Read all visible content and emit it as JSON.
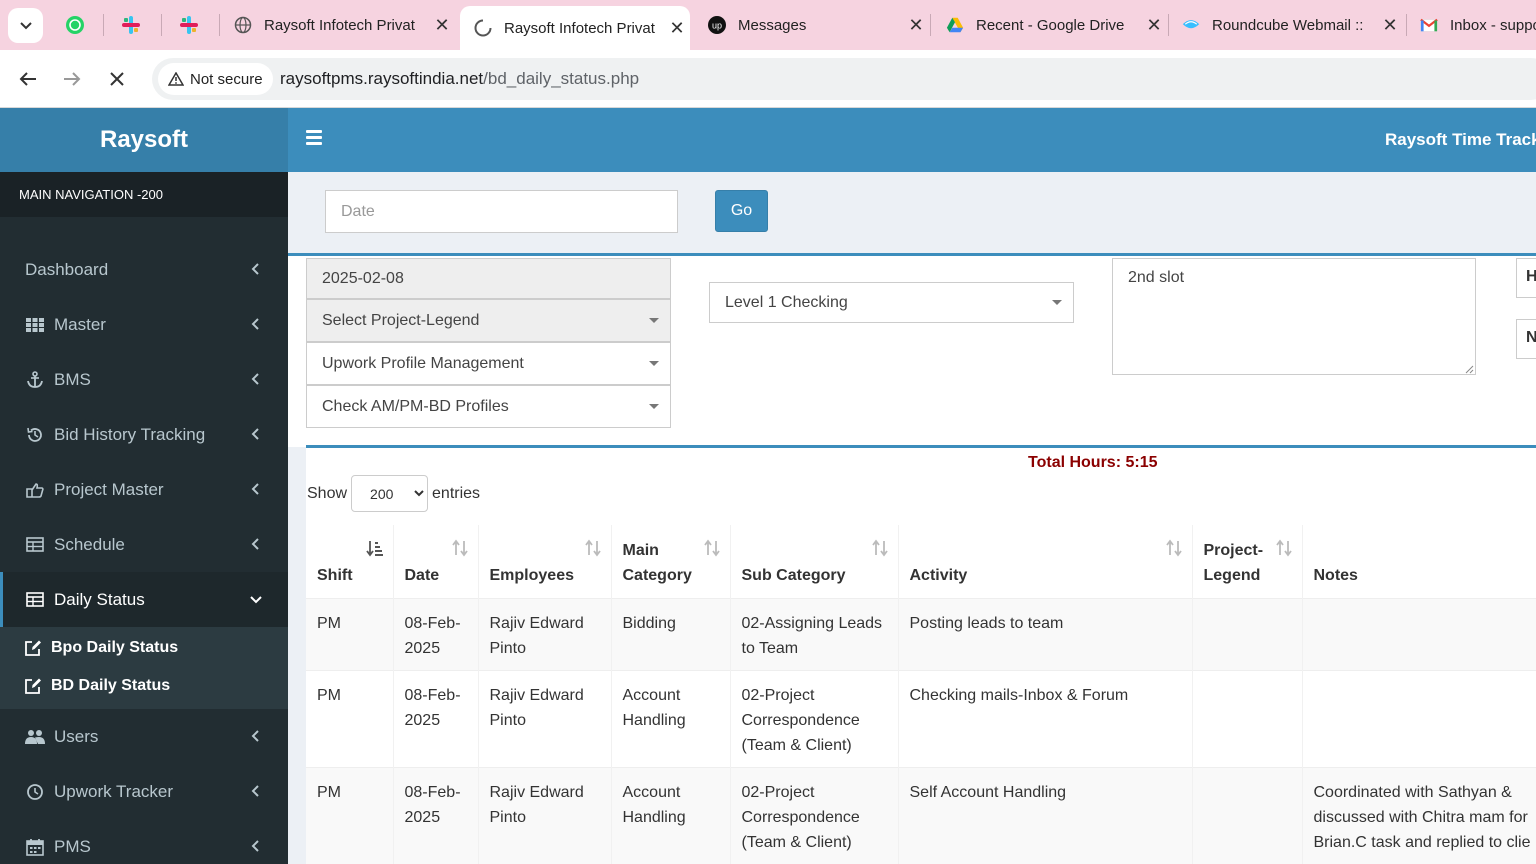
{
  "browser": {
    "tabs": [
      {
        "title": "Raysoft Infotech Privat",
        "favicon": "globe-icon",
        "active": false
      },
      {
        "title": "Raysoft Infotech Privat",
        "favicon": "loading-icon",
        "active": true
      },
      {
        "title": "Messages",
        "favicon": "upwork-icon",
        "active": false
      },
      {
        "title": "Recent - Google Drive",
        "favicon": "google-drive-icon",
        "active": false
      },
      {
        "title": "Roundcube Webmail ::",
        "favicon": "roundcube-icon",
        "active": false
      },
      {
        "title": "Inbox - suppo",
        "favicon": "gmail-icon",
        "active": false
      }
    ],
    "security_label": "Not secure",
    "url_host": "raysoftpms.raysoftindia.net",
    "url_path": "/bd_daily_status.php"
  },
  "sidebar": {
    "brand": "Raysoft",
    "nav_header": "MAIN NAVIGATION -200",
    "items": [
      {
        "label": "Dashboard",
        "icon": "dashboard-icon"
      },
      {
        "label": "Master",
        "icon": "grid-icon"
      },
      {
        "label": "BMS",
        "icon": "anchor-icon"
      },
      {
        "label": "Bid History Tracking",
        "icon": "history-icon"
      },
      {
        "label": "Project Master",
        "icon": "hand-pointer-icon"
      },
      {
        "label": "Schedule",
        "icon": "table-icon"
      },
      {
        "label": "Daily Status",
        "icon": "table-icon",
        "active": true
      },
      {
        "label": "Users",
        "icon": "users-icon"
      },
      {
        "label": "Upwork Tracker",
        "icon": "clock-icon"
      },
      {
        "label": "PMS",
        "icon": "calendar-icon"
      }
    ],
    "subitems": [
      {
        "label": "Bpo Daily Status",
        "icon": "edit-icon"
      },
      {
        "label": "BD Daily Status",
        "icon": "edit-icon"
      }
    ]
  },
  "header": {
    "app_title": "Raysoft Time Tracker"
  },
  "filter": {
    "date_placeholder": "Date",
    "go_label": "Go"
  },
  "form": {
    "date_value": "2025-02-08",
    "project_legend": "Select Project-Legend",
    "main_category": "Upwork Profile Management",
    "sub_category": "Check AM/PM-BD Profiles",
    "level": "Level 1 Checking",
    "notes": "2nd slot",
    "edge_field_1": "H",
    "edge_field_2": "N"
  },
  "table": {
    "total_hours": "Total Hours: 5:15",
    "show_label": "Show",
    "entries_label": "entries",
    "page_length": "200",
    "columns": [
      "Shift",
      "Date",
      "Employees",
      "Main Category",
      "Sub Category",
      "Activity",
      "Project-Legend",
      "Notes"
    ],
    "rows": [
      [
        "PM",
        "08-Feb-2025",
        "Rajiv Edward Pinto",
        "Bidding",
        "02-Assigning Leads to Team",
        "Posting leads to team",
        "",
        ""
      ],
      [
        "PM",
        "08-Feb-2025",
        "Rajiv Edward Pinto",
        "Account Handling",
        "02-Project Correspondence (Team & Client)",
        "Checking mails-Inbox & Forum",
        "",
        ""
      ],
      [
        "PM",
        "08-Feb-2025",
        "Rajiv Edward Pinto",
        "Account Handling",
        "02-Project Correspondence (Team & Client)",
        "Self Account Handling",
        "",
        "Coordinated with Sathyan & discussed with Chitra mam for Brian.C task and replied to clie"
      ]
    ]
  }
}
